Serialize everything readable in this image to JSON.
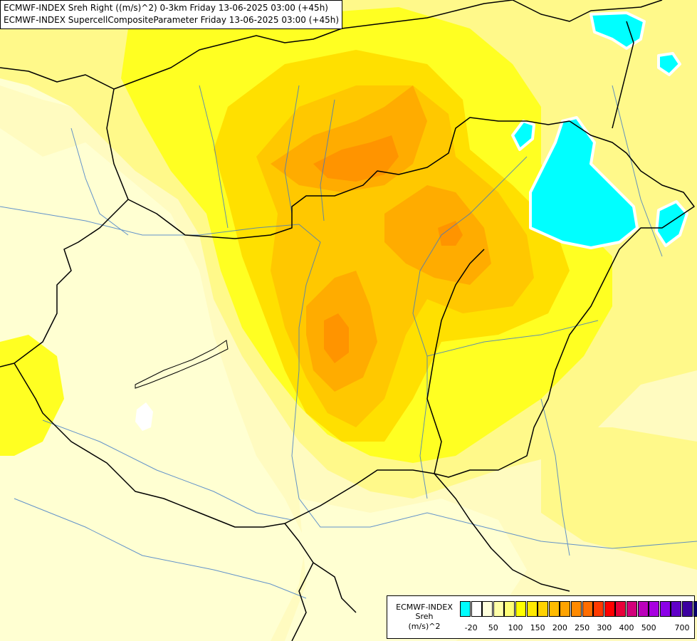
{
  "title_lines": [
    "ECMWF-INDEX Sreh Right ((m/s)^2) 0-3km Friday 13-06-2025 03:00 (+45h)",
    "ECMWF-INDEX SupercellCompositeParameter Friday 13-06-2025 03:00 (+45h)"
  ],
  "legend": {
    "model": "ECMWF-INDEX",
    "variable": "Sreh",
    "unit": "(m/s)^2",
    "swatch_colors": [
      "#00ffff",
      "#ffffff",
      "#ffffdc",
      "#ffffa8",
      "#ffff78",
      "#ffff00",
      "#ffea00",
      "#ffd200",
      "#ffbb00",
      "#ffa300",
      "#ff8a00",
      "#ff6d00",
      "#ff3a00",
      "#ff0000",
      "#e8003a",
      "#d2007b",
      "#bb00bb",
      "#a800e0",
      "#8c00e8",
      "#6000c8",
      "#3c00a0",
      "#08006e"
    ],
    "ticks": [
      "-20",
      "50",
      "100",
      "150",
      "200",
      "250",
      "300",
      "400",
      "500",
      "700"
    ]
  },
  "map_colors": {
    "base": "#fffbc0",
    "pale": "#ffffd2",
    "light": "#fff98a",
    "yellow": "#ffff22",
    "gold": "#ffe000",
    "orange_light": "#ffc800",
    "orange": "#ffac00",
    "orange_dark": "#ff9400",
    "cyan": "#00ffff",
    "border_line": "#000000",
    "river_line": "#3c78c8"
  }
}
